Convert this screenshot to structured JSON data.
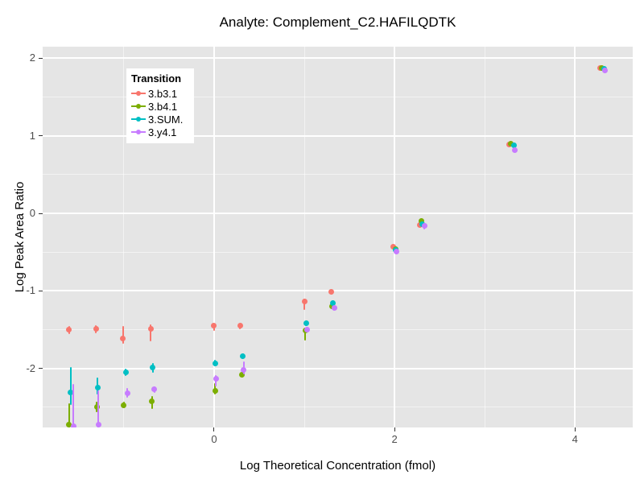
{
  "title": "Analyte: Complement_C2.HAFILQDTK",
  "x_axis": {
    "label": "Log Theoretical Concentration (fmol)",
    "ticks": [
      "0",
      "2",
      "4"
    ],
    "tick_values": [
      0,
      2,
      4
    ]
  },
  "y_axis": {
    "label": "Log Peak Area Ratio",
    "ticks": [
      "2",
      "1",
      "0",
      "-1",
      "-2"
    ],
    "tick_values": [
      2,
      1,
      0,
      -1,
      -2
    ]
  },
  "legend": {
    "title": "Transition",
    "position": "top-left-inside",
    "items": [
      {
        "label": "3.b3.1",
        "color": "#F8766D"
      },
      {
        "label": "3.b4.1",
        "color": "#7CAE00"
      },
      {
        "label": "3.SUM.",
        "color": "#00BFC4"
      },
      {
        "label": "3.y4.1",
        "color": "#C77CFF"
      }
    ]
  },
  "colors": {
    "panel_background": "#E5E5E5",
    "grid_major": "#FFFFFF",
    "grid_minor": "rgba(255,255,255,0.55)",
    "tick_text": "#4D4D4D"
  },
  "chart_data": {
    "type": "scatter",
    "title": "Analyte: Complement_C2.HAFILQDTK",
    "xlabel": "Log Theoretical Concentration (fmol)",
    "ylabel": "Log Peak Area Ratio",
    "xlim": [
      -1.9,
      4.64
    ],
    "ylim": [
      -2.76,
      2.15
    ],
    "grid": true,
    "x_major_gridlines": [
      0,
      2,
      4
    ],
    "x_minor_gridlines": [
      -1,
      1,
      3
    ],
    "y_major_gridlines": [
      -2,
      -1,
      0,
      1,
      2
    ],
    "y_minor_gridlines": [
      -2.5,
      -1.5,
      -0.5,
      0.5,
      1.5
    ],
    "point_style": "pointrange (dot with vertical error bar, no caps)",
    "series": [
      {
        "name": "3.b3.1",
        "color": "#F8766D",
        "points": [
          {
            "x": -1.61,
            "y": -1.5,
            "lo": -1.56,
            "hi": -1.45
          },
          {
            "x": -1.31,
            "y": -1.49,
            "lo": -1.55,
            "hi": -1.44
          },
          {
            "x": -1.01,
            "y": -1.61,
            "lo": -1.68,
            "hi": -1.45
          },
          {
            "x": -0.7,
            "y": -1.49,
            "lo": -1.65,
            "hi": -1.43
          },
          {
            "x": 0.0,
            "y": -1.45,
            "lo": -1.51,
            "hi": -1.42
          },
          {
            "x": 0.29,
            "y": -1.45,
            "lo": -1.49,
            "hi": -1.42
          },
          {
            "x": 1.0,
            "y": -1.14,
            "lo": -1.24,
            "hi": -1.1
          },
          {
            "x": 1.3,
            "y": -1.01,
            "lo": -1.05,
            "hi": -0.98
          },
          {
            "x": 1.99,
            "y": -0.43,
            "lo": -0.46,
            "hi": -0.41
          },
          {
            "x": 2.28,
            "y": -0.15,
            "lo": -0.18,
            "hi": -0.13
          },
          {
            "x": 3.27,
            "y": 0.89,
            "lo": 0.87,
            "hi": 0.91
          },
          {
            "x": 4.28,
            "y": 1.88,
            "lo": 1.86,
            "hi": 1.9
          }
        ]
      },
      {
        "name": "3.b4.1",
        "color": "#7CAE00",
        "points": [
          {
            "x": -1.61,
            "y": -2.72,
            "lo": -2.88,
            "hi": -2.45
          },
          {
            "x": -1.3,
            "y": -2.5,
            "lo": -2.56,
            "hi": -2.43
          },
          {
            "x": -1.0,
            "y": -2.47,
            "lo": -2.51,
            "hi": -2.43
          },
          {
            "x": -0.69,
            "y": -2.42,
            "lo": -2.52,
            "hi": -2.36
          },
          {
            "x": 0.01,
            "y": -2.29,
            "lo": -2.33,
            "hi": -2.19
          },
          {
            "x": 0.31,
            "y": -2.08,
            "lo": -2.12,
            "hi": -2.04
          },
          {
            "x": 1.01,
            "y": -1.51,
            "lo": -1.64,
            "hi": -1.47
          },
          {
            "x": 1.31,
            "y": -1.2,
            "lo": -1.23,
            "hi": -1.17
          },
          {
            "x": 2.01,
            "y": -0.46,
            "lo": -0.48,
            "hi": -0.44
          },
          {
            "x": 2.3,
            "y": -0.1,
            "lo": -0.12,
            "hi": -0.08
          },
          {
            "x": 3.29,
            "y": 0.9,
            "lo": 0.88,
            "hi": 0.92
          },
          {
            "x": 4.3,
            "y": 1.87,
            "lo": 1.85,
            "hi": 1.89
          }
        ]
      },
      {
        "name": "3.SUM.",
        "color": "#00BFC4",
        "points": [
          {
            "x": -1.59,
            "y": -2.31,
            "lo": -2.47,
            "hi": -1.98
          },
          {
            "x": -1.29,
            "y": -2.25,
            "lo": -2.33,
            "hi": -2.12
          },
          {
            "x": -0.98,
            "y": -2.05,
            "lo": -2.1,
            "hi": -2.0
          },
          {
            "x": -0.68,
            "y": -1.99,
            "lo": -2.05,
            "hi": -1.93
          },
          {
            "x": 0.01,
            "y": -1.93,
            "lo": -1.97,
            "hi": -1.89
          },
          {
            "x": 0.32,
            "y": -1.84,
            "lo": -1.87,
            "hi": -1.81
          },
          {
            "x": 1.02,
            "y": -1.42,
            "lo": -1.45,
            "hi": -1.39
          },
          {
            "x": 1.32,
            "y": -1.16,
            "lo": -1.19,
            "hi": -1.13
          },
          {
            "x": 2.01,
            "y": -0.47,
            "lo": -0.49,
            "hi": -0.45
          },
          {
            "x": 2.31,
            "y": -0.14,
            "lo": -0.16,
            "hi": -0.12
          },
          {
            "x": 3.32,
            "y": 0.88,
            "lo": 0.86,
            "hi": 0.9
          },
          {
            "x": 4.32,
            "y": 1.86,
            "lo": 1.84,
            "hi": 1.88
          }
        ]
      },
      {
        "name": "3.y4.1",
        "color": "#C77CFF",
        "points": [
          {
            "x": -1.56,
            "y": -2.74,
            "lo": -2.88,
            "hi": -2.2
          },
          {
            "x": -1.28,
            "y": -2.72,
            "lo": -2.88,
            "hi": -2.28
          },
          {
            "x": -0.96,
            "y": -2.32,
            "lo": -2.38,
            "hi": -2.25
          },
          {
            "x": -0.66,
            "y": -2.27,
            "lo": -2.31,
            "hi": -2.23
          },
          {
            "x": 0.02,
            "y": -2.13,
            "lo": -2.23,
            "hi": -2.09
          },
          {
            "x": 0.33,
            "y": -2.02,
            "lo": -2.07,
            "hi": -1.91
          },
          {
            "x": 1.03,
            "y": -1.5,
            "lo": -1.53,
            "hi": -1.47
          },
          {
            "x": 1.33,
            "y": -1.22,
            "lo": -1.25,
            "hi": -1.19
          },
          {
            "x": 2.02,
            "y": -0.49,
            "lo": -0.53,
            "hi": -0.47
          },
          {
            "x": 2.33,
            "y": -0.16,
            "lo": -0.21,
            "hi": -0.14
          },
          {
            "x": 3.33,
            "y": 0.82,
            "lo": 0.8,
            "hi": 0.84
          },
          {
            "x": 4.33,
            "y": 1.84,
            "lo": 1.82,
            "hi": 1.86
          }
        ]
      }
    ]
  }
}
